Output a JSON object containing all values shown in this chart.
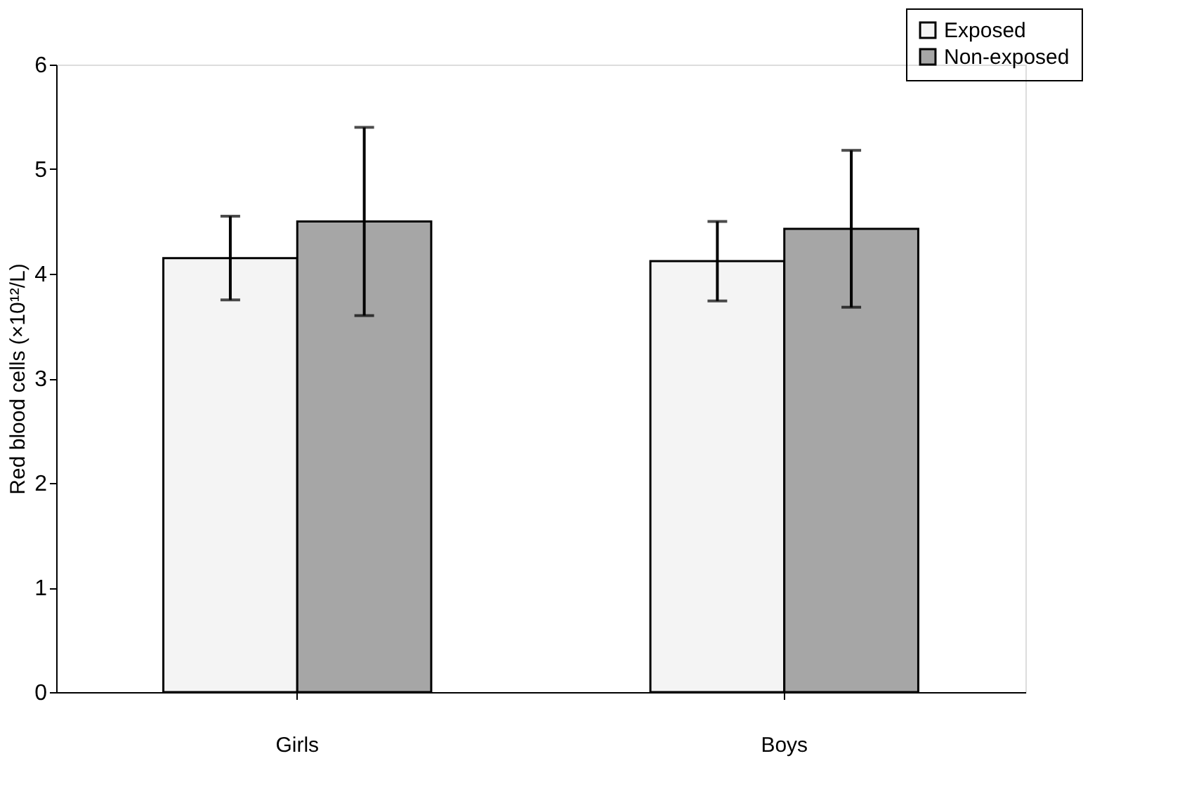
{
  "chart_data": {
    "type": "bar",
    "ylabel": "Red blood cells (×10¹²/L)",
    "categories": [
      "Girls",
      "Boys"
    ],
    "series": [
      {
        "name": "Exposed",
        "color": "#f4f4f4",
        "values": [
          4.15,
          4.12
        ],
        "errors": [
          0.4,
          0.38
        ]
      },
      {
        "name": "Non-exposed",
        "color": "#a6a6a6",
        "values": [
          4.5,
          4.43
        ],
        "errors": [
          0.9,
          0.75
        ]
      }
    ],
    "ylim": [
      0,
      6
    ],
    "yticks": [
      0,
      1,
      2,
      3,
      4,
      5,
      6
    ],
    "grid": false,
    "legend": "top right"
  }
}
